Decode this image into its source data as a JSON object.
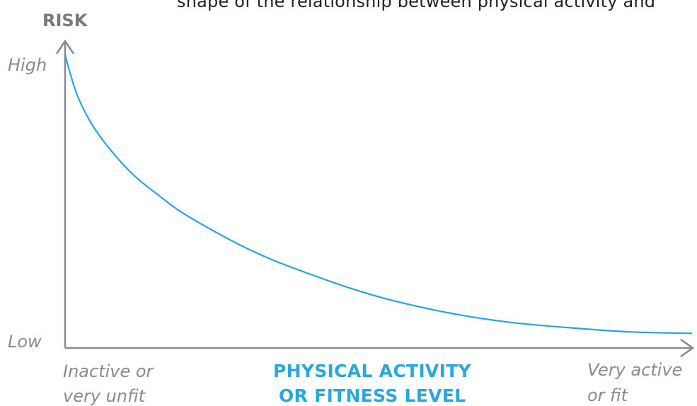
{
  "caption_fragment": "shape of the relationship between physical activity and",
  "chart_data": {
    "type": "line",
    "ylabel": "RISK",
    "xlabel_lines": [
      "PHYSICAL ACTIVITY",
      "OR FITNESS LEVEL"
    ],
    "y_tick_labels": {
      "high": "High",
      "low": "Low"
    },
    "x_tick_labels": {
      "left": [
        "Inactive or",
        "very unfit"
      ],
      "right": [
        "Very active",
        "or fit"
      ]
    },
    "series": [
      {
        "color": "#29a3dd",
        "x": [
          0,
          0.02,
          0.05,
          0.1,
          0.15,
          0.2,
          0.3,
          0.4,
          0.5,
          0.6,
          0.7,
          0.8,
          0.9,
          1.0
        ],
        "y": [
          1.0,
          0.86,
          0.74,
          0.61,
          0.52,
          0.445,
          0.33,
          0.245,
          0.175,
          0.125,
          0.09,
          0.07,
          0.055,
          0.05
        ]
      }
    ],
    "xlim": [
      0,
      1
    ],
    "ylim": [
      0,
      1
    ],
    "grid": false,
    "colors": {
      "axis": "#8a8a8a",
      "curve": "#29a3dd",
      "xlabel": "#2aa7de"
    }
  }
}
